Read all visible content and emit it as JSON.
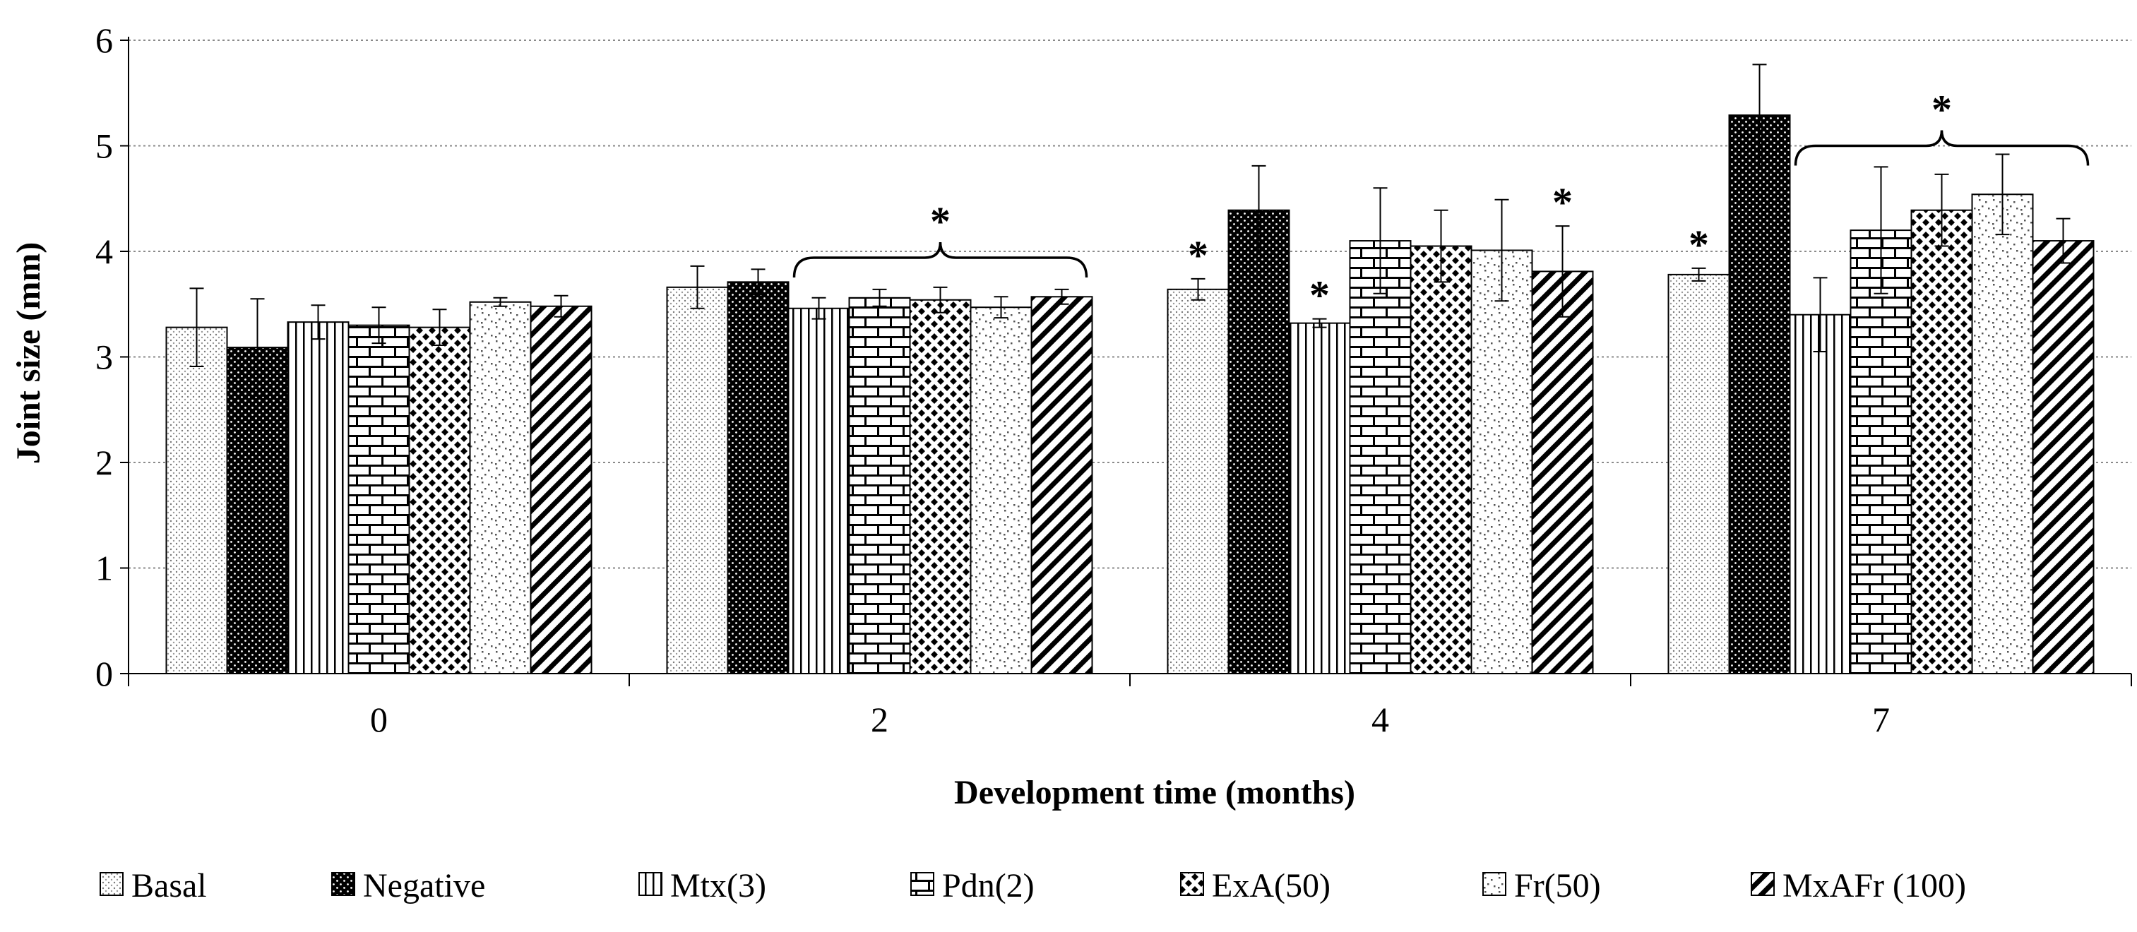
{
  "chart_data": {
    "type": "bar",
    "xlabel": "Development time (months)",
    "ylabel": "Joint size (mm)",
    "ylim": [
      0,
      6
    ],
    "yticks": [
      "0",
      "1",
      "2",
      "3",
      "4",
      "5",
      "6"
    ],
    "grid": "horizontal dotted",
    "legend_position": "bottom",
    "categories": [
      "0",
      "2",
      "4",
      "7"
    ],
    "series": [
      {
        "name": "Basal",
        "pattern": "dots-light",
        "values": [
          3.28,
          3.66,
          3.64,
          3.78
        ],
        "errors": [
          0.37,
          0.2,
          0.1,
          0.06
        ]
      },
      {
        "name": "Negative",
        "pattern": "dots-dark",
        "values": [
          3.09,
          3.71,
          4.39,
          5.29
        ],
        "errors": [
          0.46,
          0.12,
          0.42,
          0.48
        ]
      },
      {
        "name": "Mtx(3)",
        "pattern": "vertical-lines",
        "values": [
          3.33,
          3.46,
          3.32,
          3.4
        ],
        "errors": [
          0.16,
          0.1,
          0.04,
          0.35
        ]
      },
      {
        "name": "Pdn(2)",
        "pattern": "bricks",
        "values": [
          3.3,
          3.56,
          4.1,
          4.2
        ],
        "errors": [
          0.17,
          0.08,
          0.5,
          0.6
        ]
      },
      {
        "name": "ExA(50)",
        "pattern": "diamond-checks",
        "values": [
          3.28,
          3.54,
          4.05,
          4.39
        ],
        "errors": [
          0.17,
          0.12,
          0.34,
          0.34
        ]
      },
      {
        "name": "Fr(50)",
        "pattern": "confetti",
        "values": [
          3.52,
          3.47,
          4.01,
          4.54
        ],
        "errors": [
          0.04,
          0.1,
          0.48,
          0.38
        ]
      },
      {
        "name": "MxAFr (100)",
        "pattern": "diagonal-stripes",
        "values": [
          3.48,
          3.57,
          3.81,
          4.1
        ],
        "errors": [
          0.1,
          0.07,
          0.43,
          0.21
        ]
      }
    ],
    "annotations": [
      {
        "label": "*",
        "type": "bracket",
        "category": "2",
        "series_from": 2,
        "series_to": 6,
        "y": 3.94
      },
      {
        "label": "*",
        "type": "bar",
        "category": "4",
        "series": 0
      },
      {
        "label": "*",
        "type": "bar",
        "category": "4",
        "series": 2
      },
      {
        "label": "*",
        "type": "bar",
        "category": "4",
        "series": 6
      },
      {
        "label": "*",
        "type": "bar",
        "category": "7",
        "series": 0
      },
      {
        "label": "*",
        "type": "bracket",
        "category": "7",
        "series_from": 2,
        "series_to": 6,
        "y": 5.0
      }
    ]
  }
}
